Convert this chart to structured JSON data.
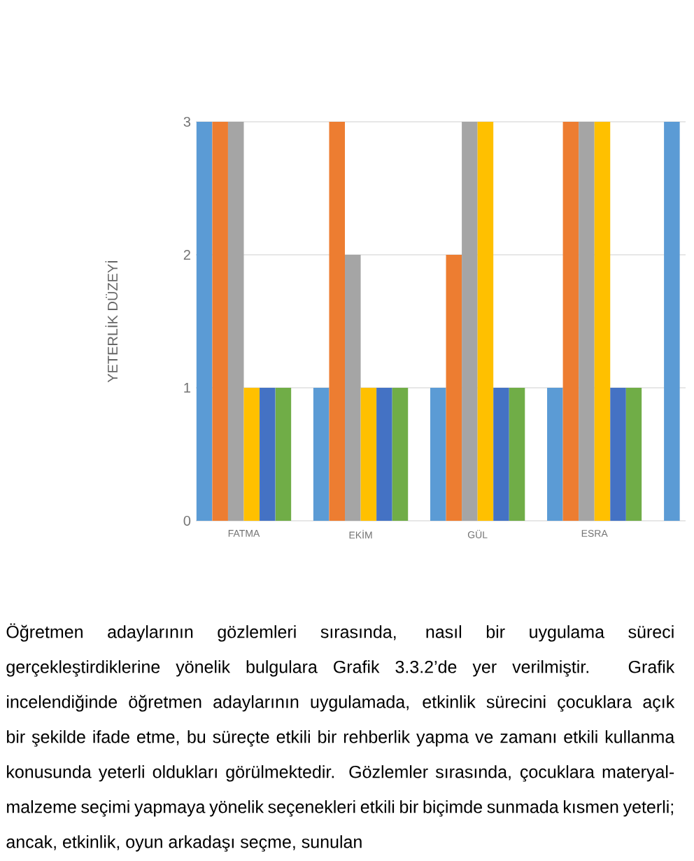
{
  "chart_data": {
    "type": "bar",
    "ylabel": "YETERLİK DÜZEYİ",
    "categories": [
      "FATMA",
      "EKİM",
      "GÜL",
      "ESRA",
      null
    ],
    "series": [
      {
        "color": "#5b9bd5",
        "values": [
          3,
          1,
          1,
          1,
          3
        ]
      },
      {
        "color": "#ed7d31",
        "values": [
          3,
          3,
          2,
          3,
          null
        ]
      },
      {
        "color": "#a5a5a5",
        "values": [
          3,
          2,
          3,
          3,
          null
        ]
      },
      {
        "color": "#ffc000",
        "values": [
          1,
          1,
          3,
          3,
          null
        ]
      },
      {
        "color": "#4472c4",
        "values": [
          1,
          1,
          1,
          1,
          null
        ]
      },
      {
        "color": "#70ad47",
        "values": [
          1,
          1,
          1,
          1,
          null
        ]
      }
    ],
    "ylim": [
      0,
      3
    ],
    "yticks": [
      0,
      1,
      2,
      3
    ],
    "grid": "y",
    "annotations": [
      "Öğretmen adaylarının gözlemleri sırasında, nasıl bir uygulama süreci gerçekleştirdiklerine yönelik bulgulara Grafik 3.3.2’de yer verilmiştir. Grafik incelendiğinde öğretmen adaylarının uygulamada, etkinlik sürecini çocuklara açık bir şekilde ifade etme, bu süreçte etkili bir rehberlik yapma ve zamanı etkili kullanma konusunda yeterli oldukları görülmektedir. Gözlemler sırasında, çocuklara materyal-malzeme seçimi yapmaya yönelik seçenekleri etkili bir biçimde sunmada kısmen yeterli; ancak, etkinlik, oyun arkadaşı seçme, sunulan"
    ]
  }
}
